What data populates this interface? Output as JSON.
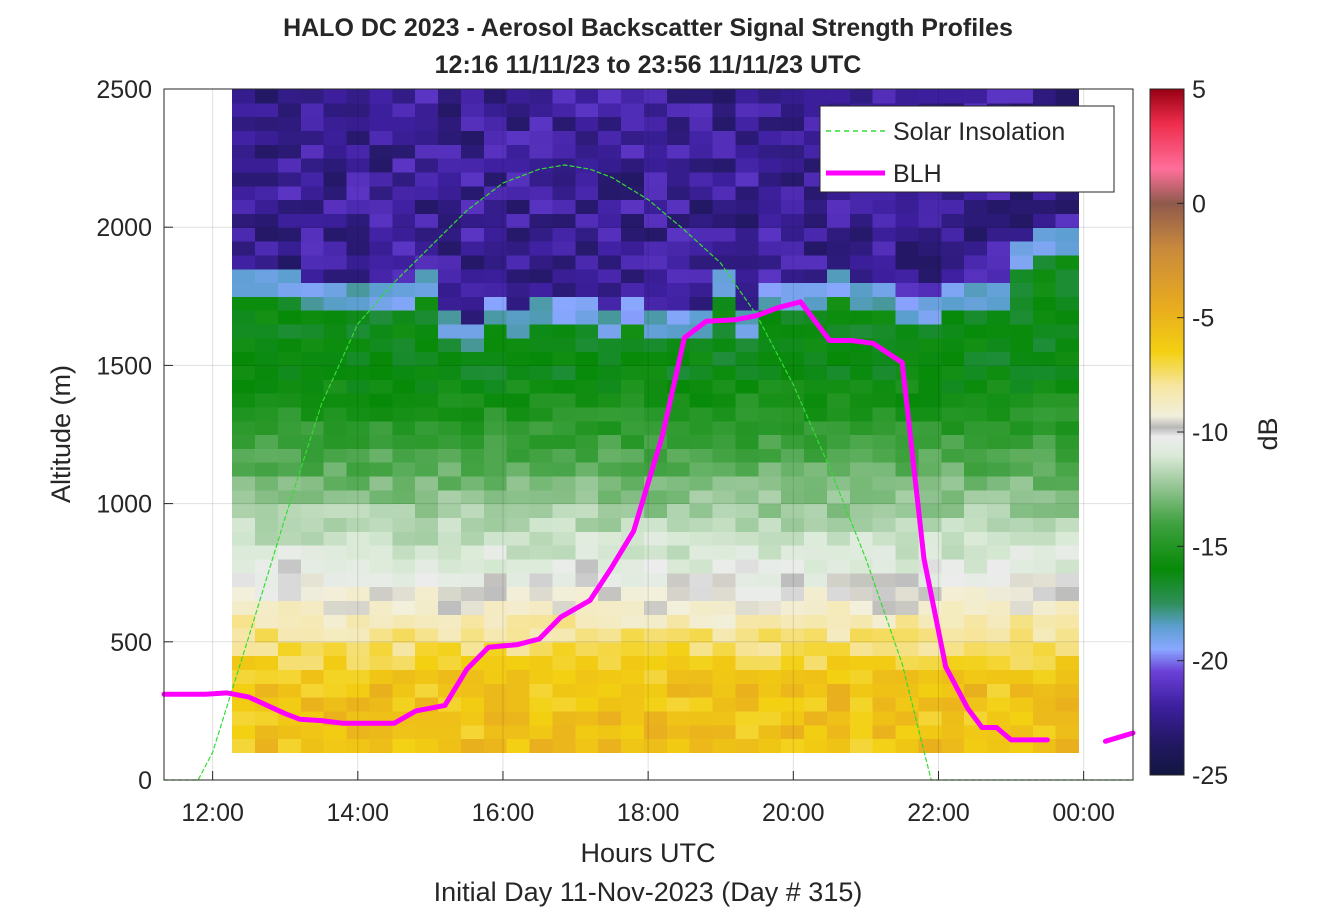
{
  "chart_data": {
    "type": "heatmap",
    "title": "HALO DC 2023 - Aerosol Backscatter Signal Strength Profiles",
    "subtitle": "12:16 11/11/23 to 23:56 11/11/23  UTC",
    "xlabel": "Hours UTC",
    "footer": "Initial Day 11-Nov-2023 (Day # 315)",
    "ylabel": "Altitude (m)",
    "colorbar_label": "dB",
    "xlim_hours": [
      11.33,
      24.68
    ],
    "ylim": [
      0,
      2500
    ],
    "x_ticks": [
      {
        "value": 12,
        "label": "12:00"
      },
      {
        "value": 14,
        "label": "14:00"
      },
      {
        "value": 16,
        "label": "16:00"
      },
      {
        "value": 18,
        "label": "18:00"
      },
      {
        "value": 20,
        "label": "20:00"
      },
      {
        "value": 22,
        "label": "22:00"
      },
      {
        "value": 24,
        "label": "00:00"
      }
    ],
    "y_ticks": [
      {
        "value": 0,
        "label": "0"
      },
      {
        "value": 500,
        "label": "500"
      },
      {
        "value": 1000,
        "label": "1000"
      },
      {
        "value": 1500,
        "label": "1500"
      },
      {
        "value": 2000,
        "label": "2000"
      },
      {
        "value": 2500,
        "label": "2500"
      }
    ],
    "colorbar": {
      "range": [
        -25,
        5
      ],
      "ticks": [
        {
          "value": 5,
          "label": "5"
        },
        {
          "value": 0,
          "label": "0"
        },
        {
          "value": -5,
          "label": "-5"
        },
        {
          "value": -10,
          "label": "-10"
        },
        {
          "value": -15,
          "label": "-15"
        },
        {
          "value": -20,
          "label": "-20"
        },
        {
          "value": -25,
          "label": "-25"
        }
      ],
      "stops": [
        {
          "value": -25,
          "color": "#121640"
        },
        {
          "value": -23.5,
          "color": "#241866"
        },
        {
          "value": -22,
          "color": "#3d1f9e"
        },
        {
          "value": -20.5,
          "color": "#6a3fd6"
        },
        {
          "value": -19.5,
          "color": "#8aa7ff"
        },
        {
          "value": -18.5,
          "color": "#5c9fd0"
        },
        {
          "value": -17.5,
          "color": "#2f8f5a"
        },
        {
          "value": -16,
          "color": "#078a08"
        },
        {
          "value": -14,
          "color": "#3fa13f"
        },
        {
          "value": -12.5,
          "color": "#8fc28f"
        },
        {
          "value": -11,
          "color": "#dcebd9"
        },
        {
          "value": -10.2,
          "color": "#ececec"
        },
        {
          "value": -9.8,
          "color": "#b8b8b8"
        },
        {
          "value": -9.3,
          "color": "#f2efdc"
        },
        {
          "value": -8,
          "color": "#f6e6a2"
        },
        {
          "value": -6.5,
          "color": "#f3d012"
        },
        {
          "value": -4.5,
          "color": "#e8ab1f"
        },
        {
          "value": -2,
          "color": "#c98a3c"
        },
        {
          "value": 0,
          "color": "#8f5a4c"
        },
        {
          "value": 1.5,
          "color": "#ff6f9a"
        },
        {
          "value": 3.5,
          "color": "#ee2c4c"
        },
        {
          "value": 5,
          "color": "#960012"
        }
      ]
    },
    "heatmap": {
      "time_start_hours": 12.27,
      "time_end_hours": 23.93,
      "altitude_bins_m": [
        100,
        150,
        200,
        250,
        300,
        350,
        400,
        450,
        500,
        550,
        600,
        650,
        700,
        750,
        800,
        850,
        900,
        950,
        1000,
        1050,
        1100,
        1150,
        1200,
        1250,
        1300,
        1350,
        1400,
        1450,
        1500,
        1550,
        1600,
        1650,
        1700,
        1750,
        1800,
        1850,
        1900,
        1950,
        2000,
        2050,
        2100,
        2150,
        2200,
        2250,
        2300,
        2350,
        2400,
        2450
      ],
      "approx_top_of_scattering_layer_m": [
        1800,
        1800,
        1800,
        1750,
        1750,
        1750,
        1750,
        1750,
        1800,
        1650,
        1600,
        1700,
        1650,
        1700,
        1700,
        1700,
        1650,
        1700,
        1650,
        1650,
        1650,
        1800,
        1650,
        1750,
        1750,
        1750,
        1800,
        1750,
        1750,
        1700,
        1700,
        1750,
        1750,
        1750,
        1900,
        1950,
        1950
      ],
      "structure": "near-surface values about -6 dB (yellow) below ~550 m, transitioning through -10 dB (white/grey) near 700 m to about -15 dB (green) up to the layer top, then -22 dB (purple) above"
    },
    "series": [
      {
        "name": "Solar Insolation",
        "style": "dashed",
        "color": "#33dd33",
        "x": [
          11.33,
          11.8,
          12.0,
          12.5,
          13.0,
          13.5,
          14.0,
          14.5,
          15.0,
          15.5,
          16.0,
          16.5,
          16.85,
          17.2,
          17.5,
          18.0,
          18.5,
          19.0,
          19.5,
          20.0,
          20.5,
          21.0,
          21.5,
          21.9,
          22.0,
          23.0,
          24.68
        ],
        "values": [
          0,
          0,
          100,
          520,
          950,
          1360,
          1650,
          1800,
          1930,
          2060,
          2160,
          2210,
          2225,
          2210,
          2180,
          2100,
          1990,
          1870,
          1680,
          1430,
          1130,
          800,
          420,
          0,
          0,
          0,
          0
        ]
      },
      {
        "name": "BLH",
        "style": "solid",
        "color": "#ff00ff",
        "x": [
          11.33,
          11.9,
          12.2,
          12.5,
          13.0,
          13.2,
          13.5,
          13.8,
          14.0,
          14.5,
          14.8,
          15.2,
          15.5,
          15.8,
          16.0,
          16.2,
          16.5,
          16.8,
          17.2,
          17.5,
          17.8,
          18.2,
          18.5,
          18.8,
          19.2,
          19.5,
          19.8,
          20.1,
          20.5,
          20.8,
          21.1,
          21.5,
          21.8,
          22.1,
          22.4,
          22.6,
          22.8,
          23.0,
          23.1,
          23.5,
          23.7,
          24.0
        ],
        "values": [
          310,
          310,
          315,
          300,
          240,
          220,
          215,
          205,
          205,
          205,
          250,
          270,
          400,
          480,
          485,
          490,
          510,
          590,
          650,
          770,
          900,
          1250,
          1600,
          1660,
          1665,
          1680,
          1710,
          1730,
          1590,
          1590,
          1580,
          1510,
          800,
          410,
          260,
          190,
          190,
          145,
          145,
          145,
          null,
          null
        ]
      },
      {
        "name": "BLH-tail",
        "style": "solid",
        "color": "#ff00ff",
        "x": [
          24.3,
          24.68
        ],
        "values": [
          140,
          170
        ]
      }
    ],
    "legend": {
      "position": "top-right",
      "entries": [
        "Solar Insolation",
        "BLH"
      ]
    },
    "grid": true
  }
}
